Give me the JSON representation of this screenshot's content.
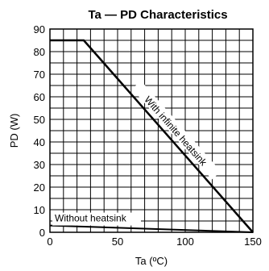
{
  "chart_data": {
    "type": "line",
    "title": "Ta — PD Characteristics",
    "xlabel": "Ta (ºC)",
    "ylabel": "PD (W)",
    "xlim": [
      0,
      150
    ],
    "ylim": [
      0,
      90
    ],
    "x_ticks": [
      "0",
      "50",
      "100",
      "150"
    ],
    "y_ticks": [
      "0",
      "10",
      "20",
      "30",
      "40",
      "50",
      "60",
      "70",
      "80",
      "90"
    ],
    "grid": true,
    "series": [
      {
        "name": "With infinite heatsink",
        "x": [
          0,
          25,
          150
        ],
        "y": [
          85,
          85,
          0
        ]
      },
      {
        "name": "Without heatsink",
        "x": [
          0,
          150
        ],
        "y": [
          3,
          0
        ]
      }
    ]
  }
}
